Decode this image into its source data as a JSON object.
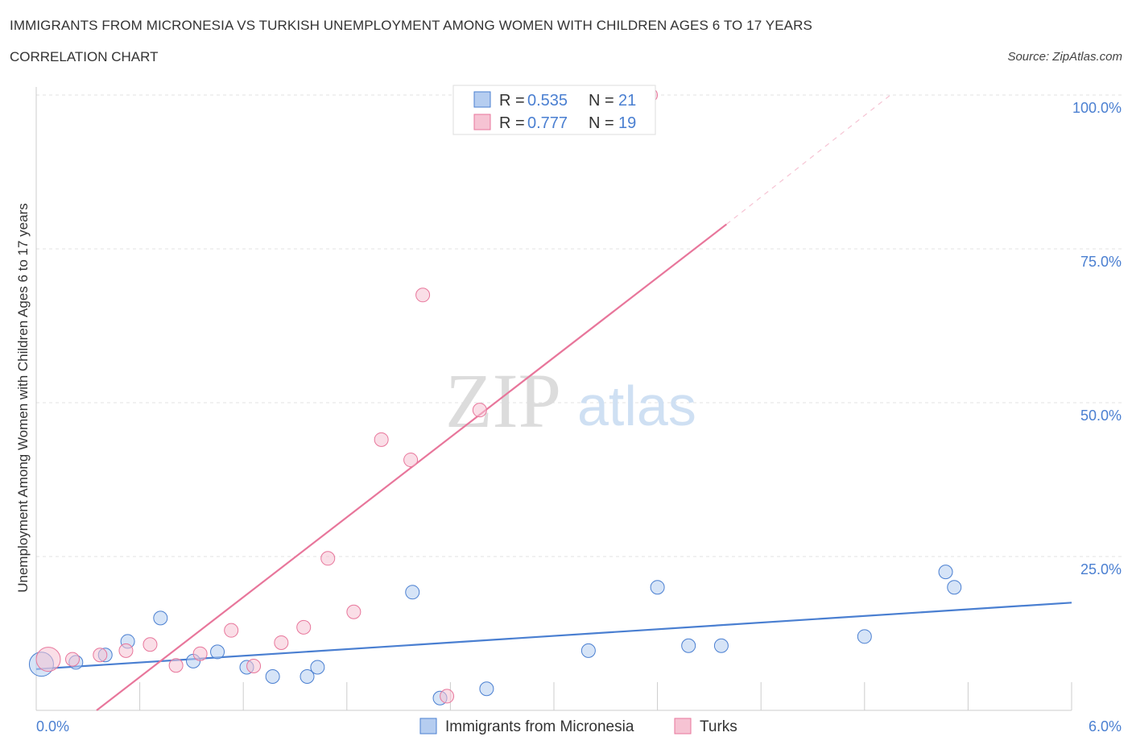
{
  "chart_data": {
    "type": "scatter",
    "title": "IMMIGRANTS FROM MICRONESIA VS TURKISH UNEMPLOYMENT AMONG WOMEN WITH CHILDREN AGES 6 TO 17 YEARS",
    "subtitle": "CORRELATION CHART",
    "source": "Source: ZipAtlas.com",
    "xlabel": "",
    "ylabel": "Unemployment Among Women with Children Ages 6 to 17 years",
    "xlim": [
      0,
      6
    ],
    "ylim": [
      0,
      100
    ],
    "x_tick_labels": [
      "0.0%",
      "6.0%"
    ],
    "y_tick_labels": [
      "100.0%",
      "75.0%",
      "50.0%",
      "25.0%"
    ],
    "y_ticks": [
      100,
      75,
      50,
      25
    ],
    "watermark": {
      "zip": "ZIP",
      "atlas": "atlas"
    },
    "legend": [
      {
        "r_label": "R = ",
        "r_value": "0.535",
        "n_label": "N = ",
        "n_value": "21"
      },
      {
        "r_label": "R = ",
        "r_value": "0.777",
        "n_label": "N = ",
        "n_value": "19"
      }
    ],
    "series": [
      {
        "name": "Immigrants from Micronesia",
        "color": "#4a7fd1",
        "fill": "#b5cdf0",
        "points": [
          {
            "x": 0.03,
            "y": 7.5,
            "big": true
          },
          {
            "x": 0.23,
            "y": 7.8
          },
          {
            "x": 0.4,
            "y": 9.0
          },
          {
            "x": 0.53,
            "y": 11.2
          },
          {
            "x": 0.72,
            "y": 15.0
          },
          {
            "x": 0.91,
            "y": 8.0
          },
          {
            "x": 1.05,
            "y": 9.5
          },
          {
            "x": 1.22,
            "y": 7.0
          },
          {
            "x": 1.37,
            "y": 5.5
          },
          {
            "x": 1.57,
            "y": 5.5
          },
          {
            "x": 1.63,
            "y": 7.0
          },
          {
            "x": 2.18,
            "y": 19.2
          },
          {
            "x": 2.34,
            "y": 2.0
          },
          {
            "x": 2.61,
            "y": 3.5
          },
          {
            "x": 3.2,
            "y": 9.7
          },
          {
            "x": 3.6,
            "y": 20.0
          },
          {
            "x": 3.78,
            "y": 10.5
          },
          {
            "x": 3.97,
            "y": 10.5
          },
          {
            "x": 4.8,
            "y": 12.0
          },
          {
            "x": 5.27,
            "y": 22.5
          },
          {
            "x": 5.32,
            "y": 20.0
          }
        ],
        "trend": {
          "x0": 0.0,
          "y0": 6.7,
          "x1": 6.0,
          "y1": 17.5
        }
      },
      {
        "name": "Turks",
        "color": "#e8769b",
        "fill": "#f6c3d3",
        "points": [
          {
            "x": 0.07,
            "y": 8.3,
            "big": true
          },
          {
            "x": 0.21,
            "y": 8.3
          },
          {
            "x": 0.37,
            "y": 9.0
          },
          {
            "x": 0.52,
            "y": 9.7
          },
          {
            "x": 0.66,
            "y": 10.7
          },
          {
            "x": 0.81,
            "y": 7.3
          },
          {
            "x": 0.95,
            "y": 9.2
          },
          {
            "x": 1.13,
            "y": 13.0
          },
          {
            "x": 1.26,
            "y": 7.2
          },
          {
            "x": 1.42,
            "y": 11.0
          },
          {
            "x": 1.55,
            "y": 13.5
          },
          {
            "x": 1.69,
            "y": 24.7
          },
          {
            "x": 1.84,
            "y": 16.0
          },
          {
            "x": 2.0,
            "y": 44.0
          },
          {
            "x": 2.17,
            "y": 40.7
          },
          {
            "x": 2.24,
            "y": 67.5
          },
          {
            "x": 2.38,
            "y": 2.3
          },
          {
            "x": 2.57,
            "y": 48.8
          },
          {
            "x": 3.56,
            "y": 100.0
          }
        ],
        "trend": {
          "x0": 0.35,
          "y0": 0.0,
          "x1": 4.0,
          "y1": 79.0
        },
        "trend_ext": {
          "x0": 4.0,
          "y0": 79.0,
          "x1": 4.95,
          "y1": 100.0
        }
      }
    ]
  }
}
